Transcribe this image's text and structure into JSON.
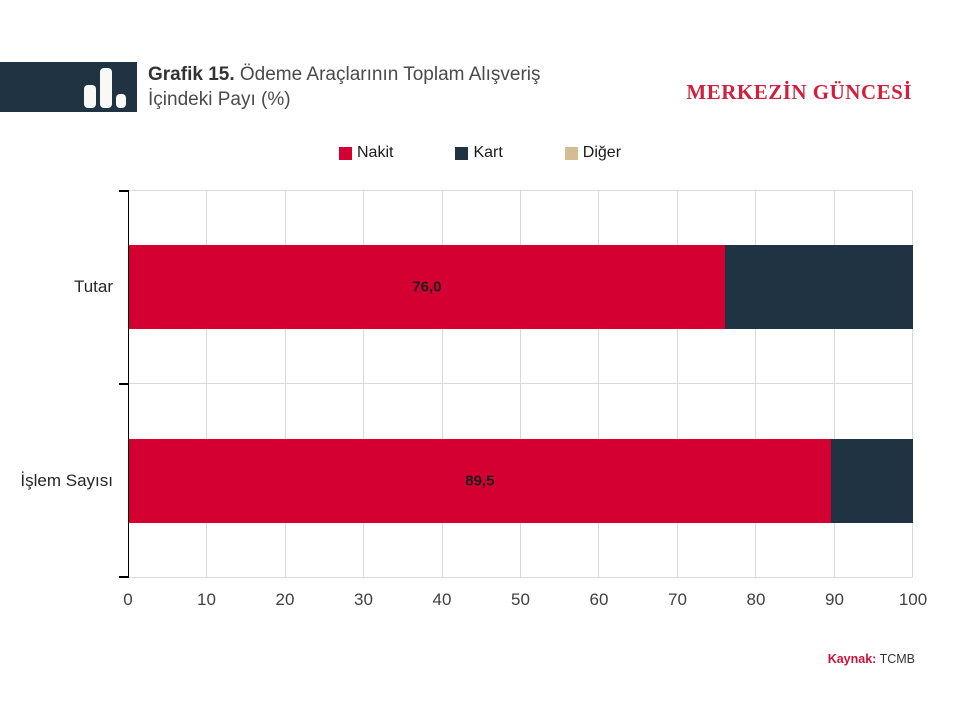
{
  "header": {
    "title_prefix": "Grafik 15.",
    "title_line1_rest": " Ödeme Araçlarının Toplam Alışveriş",
    "title_line2": "İçindeki Payı (%)",
    "brand": "MERKEZİN GÜNCESİ"
  },
  "source": {
    "label": "Kaynak:",
    "value": "TCMB"
  },
  "colors": {
    "nakit_red": "#d40032",
    "kart_navy": "#1f3343",
    "diger_tan": "#d2bd95",
    "brand_red": "#d11f3e",
    "grid_gray": "#d9d9d9",
    "axis_black": "#000000",
    "logo_navy": "#1f3343"
  },
  "chart_data": {
    "type": "bar",
    "orientation": "horizontal",
    "stacked": true,
    "title": "Grafik 15. Ödeme Araçlarının Toplam Alışveriş İçindeki Payı (%)",
    "categories": [
      "Tutar",
      "İşlem Sayısı"
    ],
    "series": [
      {
        "name": "Nakit",
        "color": "#d40032",
        "values": [
          76.0,
          89.5
        ]
      },
      {
        "name": "Kart",
        "color": "#1f3343",
        "values": [
          24.0,
          10.5
        ]
      },
      {
        "name": "Diğer",
        "color": "#d2bd95",
        "values": [
          0,
          0
        ]
      }
    ],
    "value_labels": [
      "76,0",
      "89,5"
    ],
    "xlim": [
      0,
      100
    ],
    "xticks": [
      0,
      10,
      20,
      30,
      40,
      50,
      60,
      70,
      80,
      90,
      100
    ],
    "grid": true,
    "legend_position": "top-center",
    "source": "Kaynak: TCMB"
  }
}
